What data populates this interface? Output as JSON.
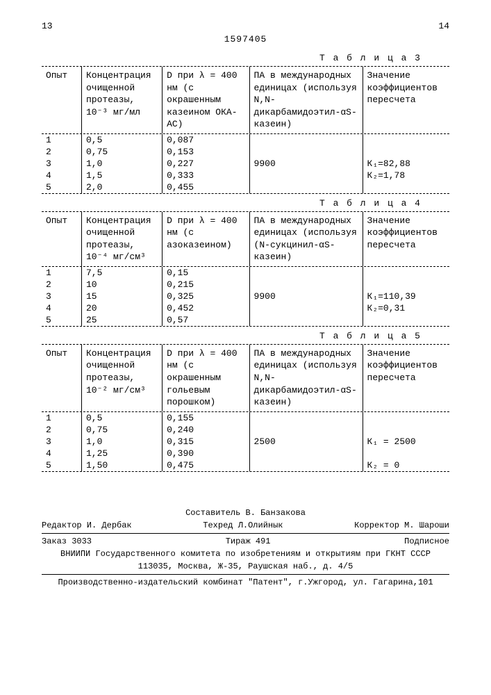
{
  "page_left": "13",
  "doc_number": "1597405",
  "page_right": "14",
  "tables": [
    {
      "title": "Т а б л и ц а  3",
      "headers": {
        "c1": "Опыт",
        "c2": "Концентрация очищенной протеазы, 10⁻³ мг/мл",
        "c3": "D при λ = 400 нм (с окрашенным казеином ОКА-АС)",
        "c4": "ПА в международных единицах (используя N,N-дикарбамидоэтил-αS-казеин)",
        "c5": "Значение коэффициентов пересчета"
      },
      "rows": [
        {
          "n": "1",
          "conc": "0,5",
          "d": "0,087",
          "pa": "",
          "k": ""
        },
        {
          "n": "2",
          "conc": "0,75",
          "d": "0,153",
          "pa": "",
          "k": ""
        },
        {
          "n": "3",
          "conc": "1,0",
          "d": "0,227",
          "pa": "9900",
          "k": "К₁=82,88"
        },
        {
          "n": "4",
          "conc": "1,5",
          "d": "0,333",
          "pa": "",
          "k": "К₂=1,78"
        },
        {
          "n": "5",
          "conc": "2,0",
          "d": "0,455",
          "pa": "",
          "k": ""
        }
      ]
    },
    {
      "title": "Т а б л и ц а  4",
      "headers": {
        "c1": "Опыт",
        "c2": "Концентрация очищенной протеазы, 10⁻⁴ мг/см³",
        "c3": "D при λ = 400 нм (с азоказеином)",
        "c4": "ПА в международных единицах (используя (N-сукцинил-αS-казеин)",
        "c5": "Значение коэффициентов пересчета"
      },
      "rows": [
        {
          "n": "1",
          "conc": "7,5",
          "d": "0,15",
          "pa": "",
          "k": ""
        },
        {
          "n": "2",
          "conc": "10",
          "d": "0,215",
          "pa": "",
          "k": ""
        },
        {
          "n": "3",
          "conc": "15",
          "d": "0,325",
          "pa": "9900",
          "k": "К₁=110,39"
        },
        {
          "n": "4",
          "conc": "20",
          "d": "0,452",
          "pa": "",
          "k": "К₂=0,31"
        },
        {
          "n": "5",
          "conc": "25",
          "d": "0,57",
          "pa": "",
          "k": ""
        }
      ]
    },
    {
      "title": "Т а б л и ц а  5",
      "headers": {
        "c1": "Опыт",
        "c2": "Концентрация очищенной протеазы, 10⁻² мг/см³",
        "c3": "D при λ = 400 нм (с окрашенным гольевым порошком)",
        "c4": "ПА в международных единицах (используя N,N-дикарбамидоэтил-αS-казеин)",
        "c5": "Значение коэффициентов пересчета"
      },
      "rows": [
        {
          "n": "1",
          "conc": "0,5",
          "d": "0,155",
          "pa": "",
          "k": ""
        },
        {
          "n": "2",
          "conc": "0,75",
          "d": "0,240",
          "pa": "",
          "k": ""
        },
        {
          "n": "3",
          "conc": "1,0",
          "d": "0,315",
          "pa": "2500",
          "k": "К₁ = 2500"
        },
        {
          "n": "4",
          "conc": "1,25",
          "d": "0,390",
          "pa": "",
          "k": ""
        },
        {
          "n": "5",
          "conc": "1,50",
          "d": "0,475",
          "pa": "",
          "k": "К₂ = 0"
        }
      ]
    }
  ],
  "footer": {
    "compiler": "Составитель В. Банзакова",
    "editor": "Редактор И. Дербак",
    "techred": "Техред Л.Олийнык",
    "corrector": "Корректор М. Шароши",
    "order": "Заказ 3033",
    "tirazh": "Тираж 491",
    "podpisnoe": "Подписное",
    "org": "ВНИИПИ Государственного комитета по изобретениям и открытиям при ГКНТ СССР",
    "addr1": "113035, Москва, Ж-35, Раушская наб., д. 4/5",
    "addr2": "Производственно-издательский комбинат \"Патент\", г.Ужгород, ул. Гагарина,101"
  }
}
